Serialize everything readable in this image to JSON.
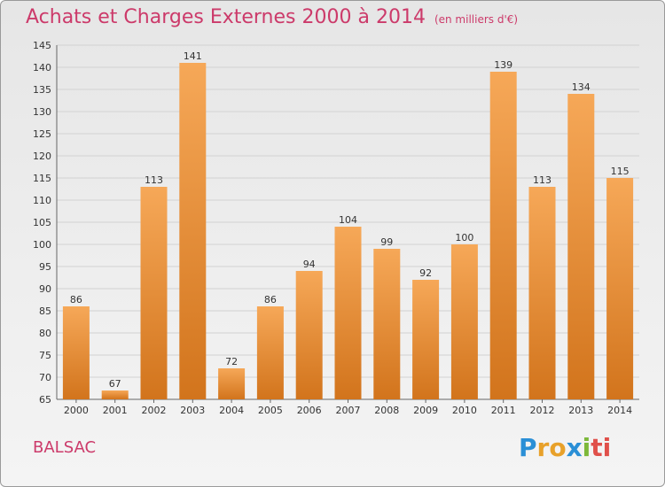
{
  "title": "Achats et Charges Externes 2000 à 2014",
  "unit_note": "(en milliers d'€)",
  "commune": "BALSAC",
  "brand": {
    "letters": [
      "P",
      "r",
      "o",
      "x",
      "i",
      "ti"
    ],
    "colors": [
      "#2a8fd6",
      "#e8a12a",
      "#e8a12a",
      "#2a8fd6",
      "#7cb83a",
      "#e0504a"
    ]
  },
  "colors": {
    "bar_top": "#f6a858",
    "bar_bottom": "#d2741c",
    "title": "#cc3a6a",
    "grid": "#d2d2d2"
  },
  "chart_data": {
    "type": "bar",
    "title": "Achats et Charges Externes 2000 à 2014",
    "categories": [
      "2000",
      "2001",
      "2002",
      "2003",
      "2004",
      "2005",
      "2006",
      "2007",
      "2008",
      "2009",
      "2010",
      "2011",
      "2012",
      "2013",
      "2014"
    ],
    "values": [
      86,
      67,
      113,
      141,
      72,
      86,
      94,
      104,
      99,
      92,
      100,
      139,
      113,
      134,
      115
    ],
    "ylim": [
      65,
      145
    ],
    "yticks": [
      65,
      70,
      75,
      80,
      85,
      90,
      95,
      100,
      105,
      110,
      115,
      120,
      125,
      130,
      135,
      140,
      145
    ],
    "xlabel": "",
    "ylabel": "",
    "grid": true,
    "data_labels": true
  }
}
